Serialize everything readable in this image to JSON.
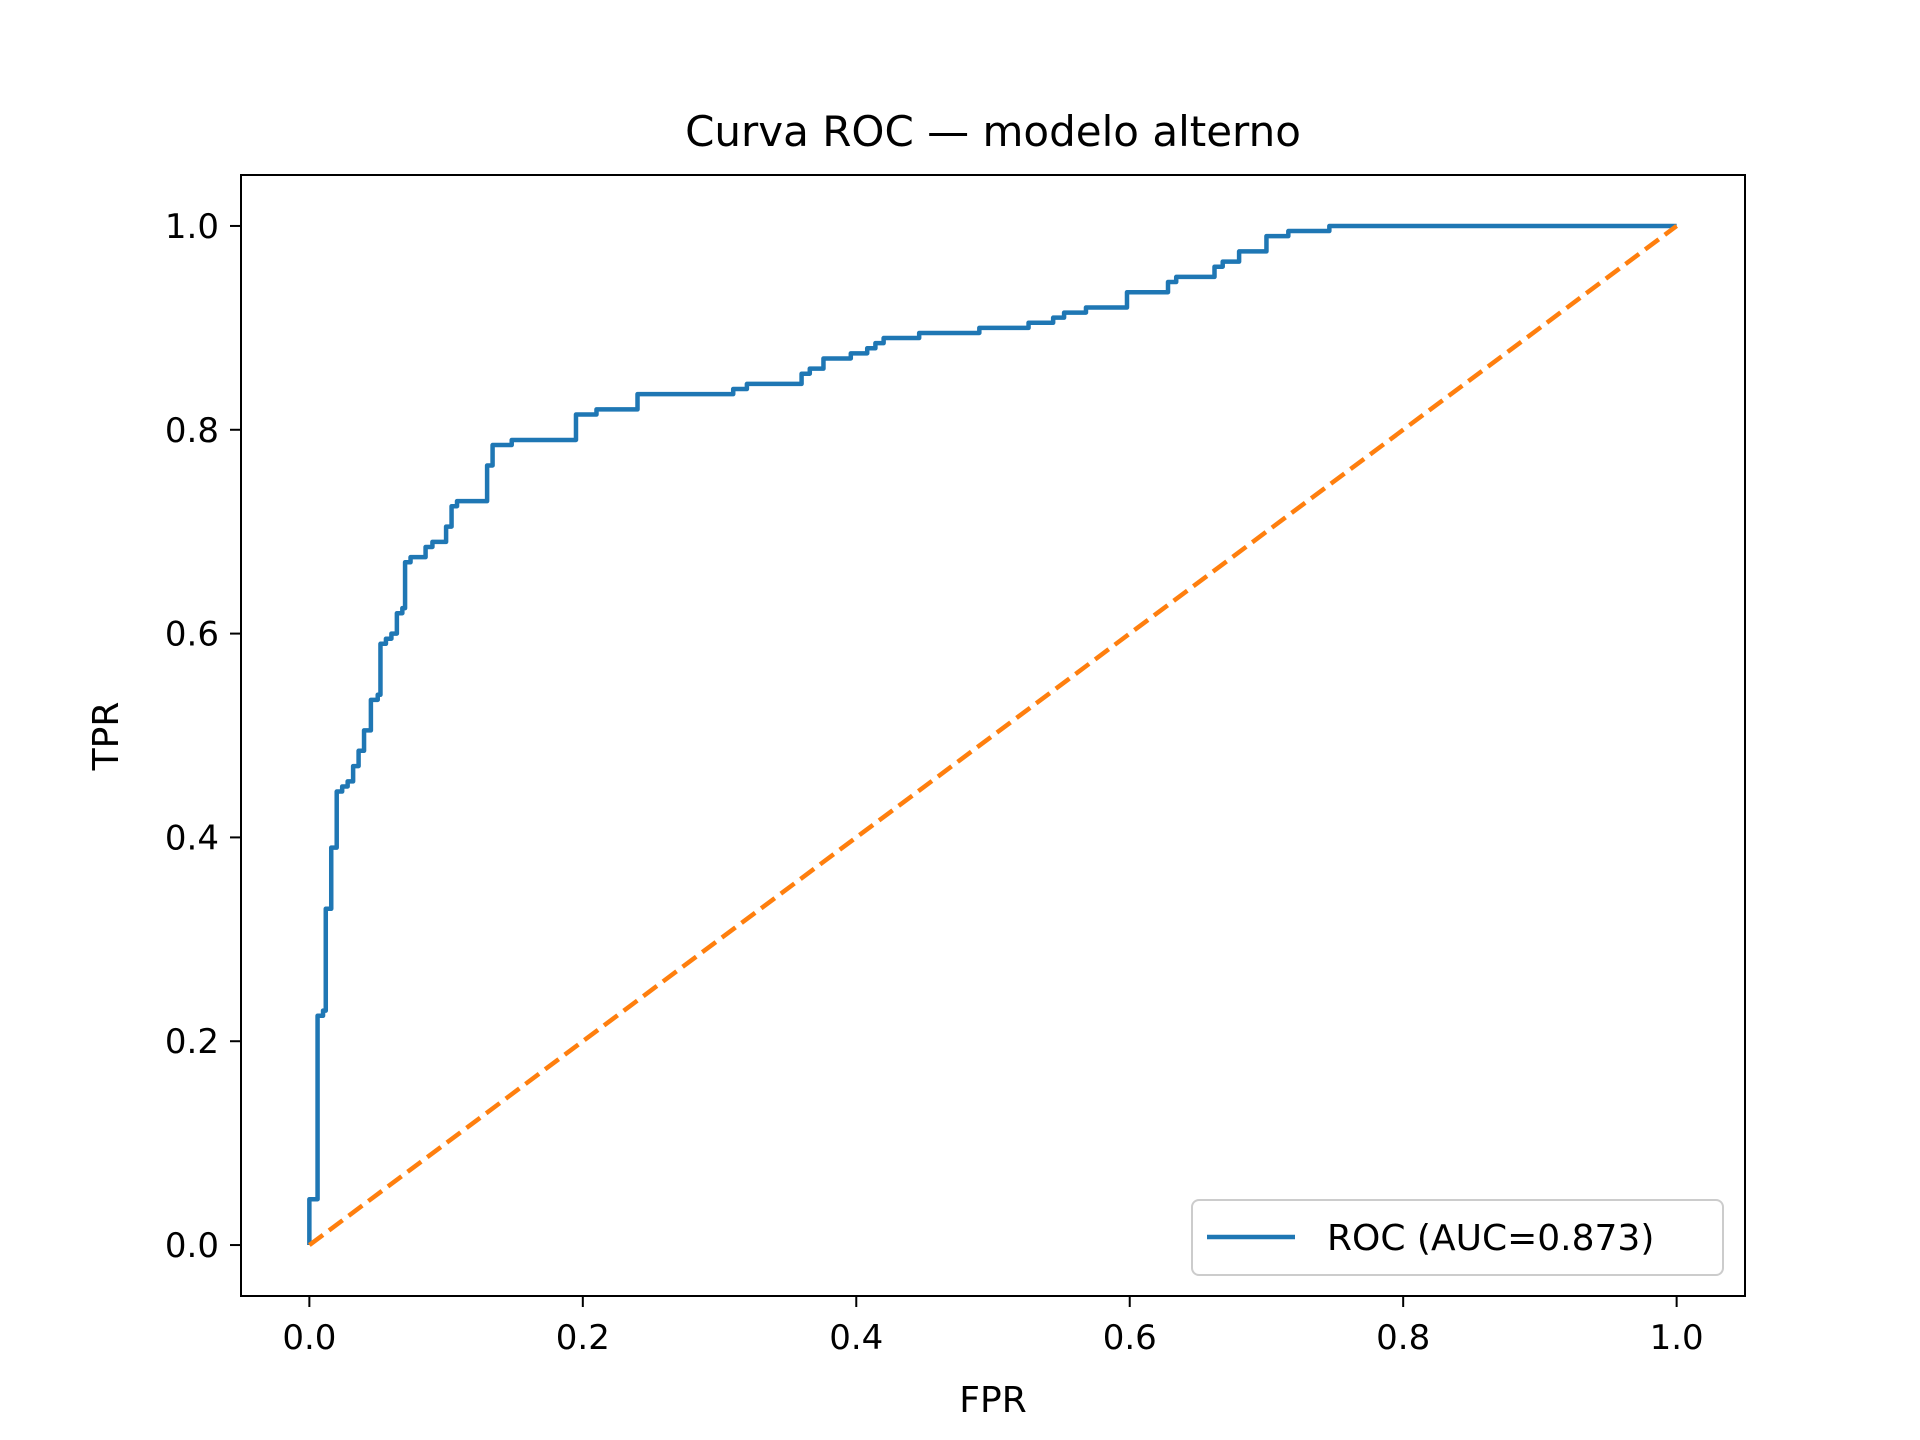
{
  "chart_data": {
    "type": "line",
    "title": "Curva ROC — modelo alterno",
    "xlabel": "FPR",
    "ylabel": "TPR",
    "xlim": [
      -0.05,
      1.05
    ],
    "ylim": [
      -0.05,
      1.05
    ],
    "xticks": [
      0.0,
      0.2,
      0.4,
      0.6,
      0.8,
      1.0
    ],
    "xtick_labels": [
      "0.0",
      "0.2",
      "0.4",
      "0.6",
      "0.8",
      "1.0"
    ],
    "yticks": [
      0.0,
      0.2,
      0.4,
      0.6,
      0.8,
      1.0
    ],
    "ytick_labels": [
      "0.0",
      "0.2",
      "0.4",
      "0.6",
      "0.8",
      "1.0"
    ],
    "grid": false,
    "legend": {
      "position": "lower-right",
      "entries": [
        "ROC (AUC=0.873)"
      ]
    },
    "series": [
      {
        "name": "ROC (AUC=0.873)",
        "color": "#1f77b4",
        "style": "solid",
        "step": true,
        "points": [
          [
            0.0,
            0.0
          ],
          [
            0.0,
            0.045
          ],
          [
            0.006,
            0.045
          ],
          [
            0.006,
            0.225
          ],
          [
            0.01,
            0.225
          ],
          [
            0.01,
            0.23
          ],
          [
            0.012,
            0.23
          ],
          [
            0.012,
            0.33
          ],
          [
            0.016,
            0.33
          ],
          [
            0.016,
            0.39
          ],
          [
            0.02,
            0.39
          ],
          [
            0.02,
            0.445
          ],
          [
            0.024,
            0.445
          ],
          [
            0.024,
            0.45
          ],
          [
            0.028,
            0.45
          ],
          [
            0.028,
            0.455
          ],
          [
            0.032,
            0.455
          ],
          [
            0.032,
            0.47
          ],
          [
            0.036,
            0.47
          ],
          [
            0.036,
            0.485
          ],
          [
            0.04,
            0.485
          ],
          [
            0.04,
            0.505
          ],
          [
            0.045,
            0.505
          ],
          [
            0.045,
            0.535
          ],
          [
            0.05,
            0.535
          ],
          [
            0.05,
            0.54
          ],
          [
            0.052,
            0.54
          ],
          [
            0.052,
            0.59
          ],
          [
            0.056,
            0.59
          ],
          [
            0.056,
            0.595
          ],
          [
            0.06,
            0.595
          ],
          [
            0.06,
            0.6
          ],
          [
            0.064,
            0.6
          ],
          [
            0.064,
            0.62
          ],
          [
            0.068,
            0.62
          ],
          [
            0.068,
            0.625
          ],
          [
            0.07,
            0.625
          ],
          [
            0.07,
            0.67
          ],
          [
            0.074,
            0.67
          ],
          [
            0.074,
            0.675
          ],
          [
            0.085,
            0.675
          ],
          [
            0.085,
            0.685
          ],
          [
            0.09,
            0.685
          ],
          [
            0.09,
            0.69
          ],
          [
            0.1,
            0.69
          ],
          [
            0.1,
            0.705
          ],
          [
            0.104,
            0.705
          ],
          [
            0.104,
            0.725
          ],
          [
            0.108,
            0.725
          ],
          [
            0.108,
            0.73
          ],
          [
            0.13,
            0.73
          ],
          [
            0.13,
            0.765
          ],
          [
            0.134,
            0.765
          ],
          [
            0.134,
            0.785
          ],
          [
            0.148,
            0.785
          ],
          [
            0.148,
            0.79
          ],
          [
            0.195,
            0.79
          ],
          [
            0.195,
            0.815
          ],
          [
            0.21,
            0.815
          ],
          [
            0.21,
            0.82
          ],
          [
            0.24,
            0.82
          ],
          [
            0.24,
            0.835
          ],
          [
            0.31,
            0.835
          ],
          [
            0.31,
            0.84
          ],
          [
            0.32,
            0.84
          ],
          [
            0.32,
            0.845
          ],
          [
            0.36,
            0.845
          ],
          [
            0.36,
            0.855
          ],
          [
            0.366,
            0.855
          ],
          [
            0.366,
            0.86
          ],
          [
            0.376,
            0.86
          ],
          [
            0.376,
            0.87
          ],
          [
            0.396,
            0.87
          ],
          [
            0.396,
            0.875
          ],
          [
            0.408,
            0.875
          ],
          [
            0.408,
            0.88
          ],
          [
            0.414,
            0.88
          ],
          [
            0.414,
            0.885
          ],
          [
            0.42,
            0.885
          ],
          [
            0.42,
            0.89
          ],
          [
            0.446,
            0.89
          ],
          [
            0.446,
            0.895
          ],
          [
            0.49,
            0.895
          ],
          [
            0.49,
            0.9
          ],
          [
            0.526,
            0.9
          ],
          [
            0.526,
            0.905
          ],
          [
            0.544,
            0.905
          ],
          [
            0.544,
            0.91
          ],
          [
            0.552,
            0.91
          ],
          [
            0.552,
            0.915
          ],
          [
            0.568,
            0.915
          ],
          [
            0.568,
            0.92
          ],
          [
            0.598,
            0.92
          ],
          [
            0.598,
            0.935
          ],
          [
            0.628,
            0.935
          ],
          [
            0.628,
            0.945
          ],
          [
            0.634,
            0.945
          ],
          [
            0.634,
            0.95
          ],
          [
            0.662,
            0.95
          ],
          [
            0.662,
            0.96
          ],
          [
            0.668,
            0.96
          ],
          [
            0.668,
            0.965
          ],
          [
            0.68,
            0.965
          ],
          [
            0.68,
            0.975
          ],
          [
            0.7,
            0.975
          ],
          [
            0.7,
            0.99
          ],
          [
            0.716,
            0.99
          ],
          [
            0.716,
            0.995
          ],
          [
            0.746,
            0.995
          ],
          [
            0.746,
            1.0
          ],
          [
            1.0,
            1.0
          ]
        ]
      },
      {
        "name": "",
        "color": "#ff7f0e",
        "style": "dashed",
        "points": [
          [
            0.0,
            0.0
          ],
          [
            1.0,
            1.0
          ]
        ]
      }
    ]
  }
}
